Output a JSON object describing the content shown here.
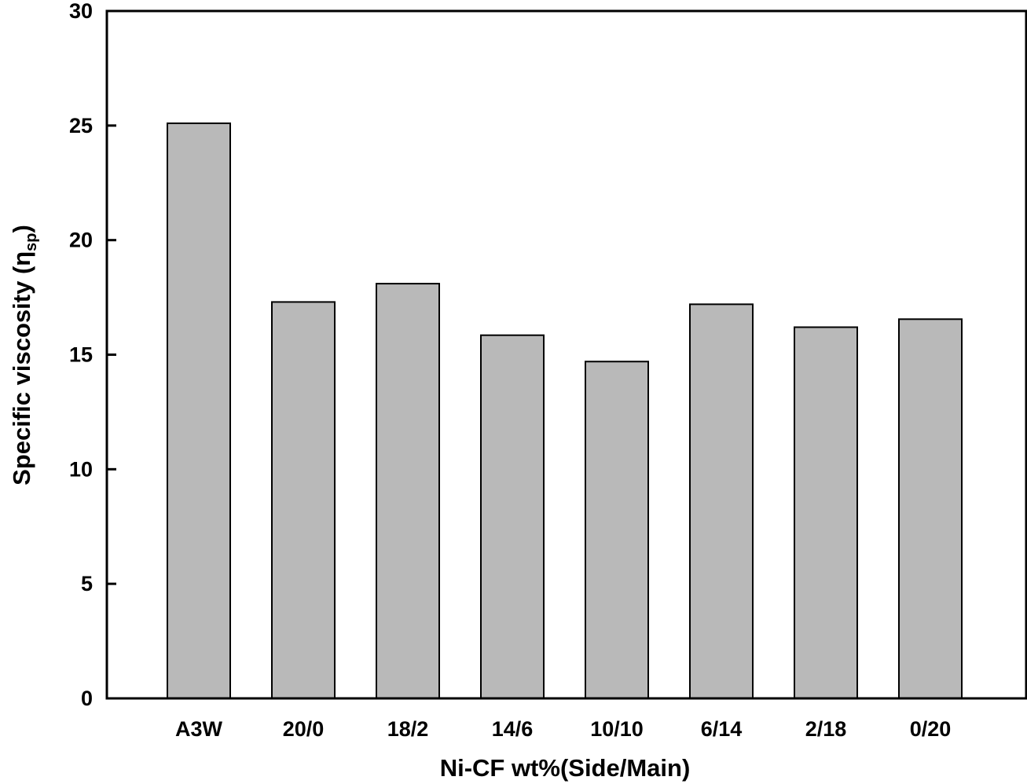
{
  "chart_data": {
    "type": "bar",
    "title": "",
    "xlabel": "Ni-CF wt%(Side/Main)",
    "ylabel": {
      "main": "Specific viscosity (",
      "symbol": "η",
      "subscript": "sp",
      "close": ")"
    },
    "categories": [
      "A3W",
      "20/0",
      "18/2",
      "14/6",
      "10/10",
      "6/14",
      "2/18",
      "0/20"
    ],
    "values": [
      25.1,
      17.3,
      18.1,
      15.85,
      14.7,
      17.2,
      16.2,
      16.55
    ],
    "ylim": [
      0,
      30
    ],
    "yticks": [
      0,
      5,
      10,
      15,
      20,
      25,
      30
    ],
    "grid": false,
    "legend": "none",
    "colors": {
      "bar_fill": "#b9b9b9",
      "bar_stroke": "#000000",
      "axis": "#000000"
    }
  }
}
